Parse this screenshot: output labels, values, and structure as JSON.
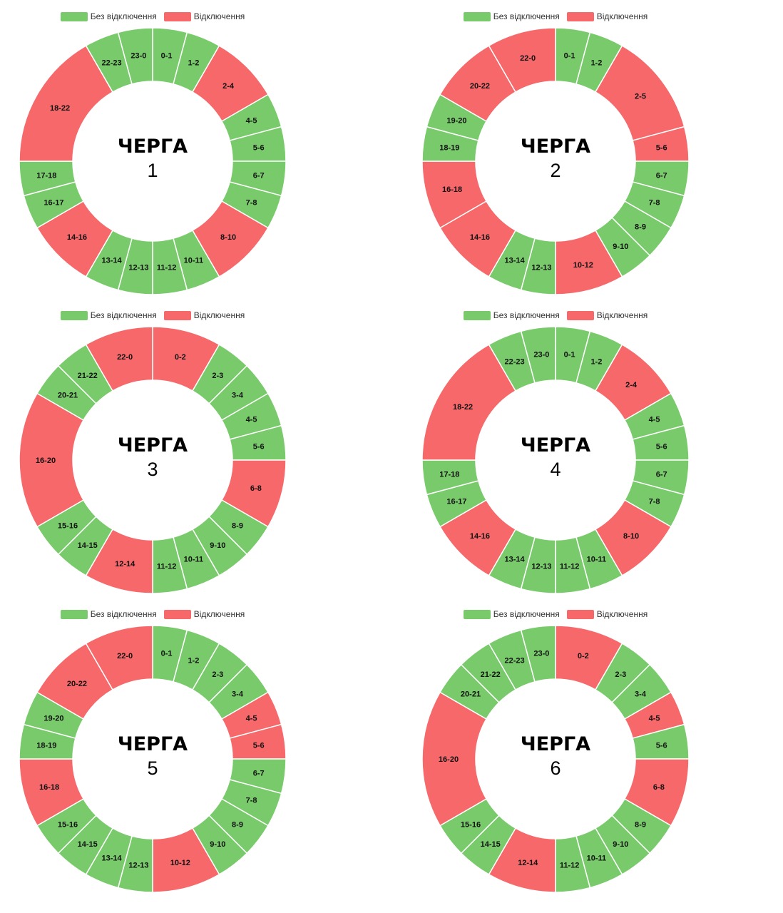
{
  "legend": {
    "no_outage": "Без відключення",
    "outage": "Відключення"
  },
  "colors": {
    "no_outage": "#78ca6b",
    "outage": "#f6686a",
    "divider": "#ffffff"
  },
  "title_word": "ЧЕРГА",
  "chart_data": [
    {
      "type": "pie",
      "variant": "donut",
      "title": "ЧЕРГА 1",
      "queue": "1",
      "segments": [
        {
          "label": "0-1",
          "start": 0,
          "end": 1,
          "outage": false
        },
        {
          "label": "1-2",
          "start": 1,
          "end": 2,
          "outage": false
        },
        {
          "label": "2-4",
          "start": 2,
          "end": 4,
          "outage": true
        },
        {
          "label": "4-5",
          "start": 4,
          "end": 5,
          "outage": false
        },
        {
          "label": "5-6",
          "start": 5,
          "end": 6,
          "outage": false
        },
        {
          "label": "6-7",
          "start": 6,
          "end": 7,
          "outage": false
        },
        {
          "label": "7-8",
          "start": 7,
          "end": 8,
          "outage": false
        },
        {
          "label": "8-10",
          "start": 8,
          "end": 10,
          "outage": true
        },
        {
          "label": "10-11",
          "start": 10,
          "end": 11,
          "outage": false
        },
        {
          "label": "11-12",
          "start": 11,
          "end": 12,
          "outage": false
        },
        {
          "label": "12-13",
          "start": 12,
          "end": 13,
          "outage": false
        },
        {
          "label": "13-14",
          "start": 13,
          "end": 14,
          "outage": false
        },
        {
          "label": "14-16",
          "start": 14,
          "end": 16,
          "outage": true
        },
        {
          "label": "16-17",
          "start": 16,
          "end": 17,
          "outage": false
        },
        {
          "label": "17-18",
          "start": 17,
          "end": 18,
          "outage": false
        },
        {
          "label": "18-22",
          "start": 18,
          "end": 22,
          "outage": true
        },
        {
          "label": "22-23",
          "start": 22,
          "end": 23,
          "outage": false
        },
        {
          "label": "23-0",
          "start": 23,
          "end": 24,
          "outage": false
        }
      ]
    },
    {
      "type": "pie",
      "variant": "donut",
      "title": "ЧЕРГА 2",
      "queue": "2",
      "segments": [
        {
          "label": "0-1",
          "start": 0,
          "end": 1,
          "outage": false
        },
        {
          "label": "1-2",
          "start": 1,
          "end": 2,
          "outage": false
        },
        {
          "label": "2-5",
          "start": 2,
          "end": 5,
          "outage": true
        },
        {
          "label": "5-6",
          "start": 5,
          "end": 6,
          "outage": true
        },
        {
          "label": "6-7",
          "start": 6,
          "end": 7,
          "outage": false
        },
        {
          "label": "7-8",
          "start": 7,
          "end": 8,
          "outage": false
        },
        {
          "label": "8-9",
          "start": 8,
          "end": 9,
          "outage": false
        },
        {
          "label": "9-10",
          "start": 9,
          "end": 10,
          "outage": false
        },
        {
          "label": "10-12",
          "start": 10,
          "end": 12,
          "outage": true
        },
        {
          "label": "12-13",
          "start": 12,
          "end": 13,
          "outage": false
        },
        {
          "label": "13-14",
          "start": 13,
          "end": 14,
          "outage": false
        },
        {
          "label": "14-16",
          "start": 14,
          "end": 16,
          "outage": true
        },
        {
          "label": "16-18",
          "start": 16,
          "end": 18,
          "outage": true
        },
        {
          "label": "18-19",
          "start": 18,
          "end": 19,
          "outage": false
        },
        {
          "label": "19-20",
          "start": 19,
          "end": 20,
          "outage": false
        },
        {
          "label": "20-22",
          "start": 20,
          "end": 22,
          "outage": true
        },
        {
          "label": "22-0",
          "start": 22,
          "end": 24,
          "outage": true
        }
      ]
    },
    {
      "type": "pie",
      "variant": "donut",
      "title": "ЧЕРГА 3",
      "queue": "3",
      "segments": [
        {
          "label": "0-2",
          "start": 0,
          "end": 2,
          "outage": true
        },
        {
          "label": "2-3",
          "start": 2,
          "end": 3,
          "outage": false
        },
        {
          "label": "3-4",
          "start": 3,
          "end": 4,
          "outage": false
        },
        {
          "label": "4-5",
          "start": 4,
          "end": 5,
          "outage": false
        },
        {
          "label": "5-6",
          "start": 5,
          "end": 6,
          "outage": false
        },
        {
          "label": "6-8",
          "start": 6,
          "end": 8,
          "outage": true
        },
        {
          "label": "8-9",
          "start": 8,
          "end": 9,
          "outage": false
        },
        {
          "label": "9-10",
          "start": 9,
          "end": 10,
          "outage": false
        },
        {
          "label": "10-11",
          "start": 10,
          "end": 11,
          "outage": false
        },
        {
          "label": "11-12",
          "start": 11,
          "end": 12,
          "outage": false
        },
        {
          "label": "12-14",
          "start": 12,
          "end": 14,
          "outage": true
        },
        {
          "label": "14-15",
          "start": 14,
          "end": 15,
          "outage": false
        },
        {
          "label": "15-16",
          "start": 15,
          "end": 16,
          "outage": false
        },
        {
          "label": "16-20",
          "start": 16,
          "end": 20,
          "outage": true
        },
        {
          "label": "20-21",
          "start": 20,
          "end": 21,
          "outage": false
        },
        {
          "label": "21-22",
          "start": 21,
          "end": 22,
          "outage": false
        },
        {
          "label": "22-0",
          "start": 22,
          "end": 24,
          "outage": true
        }
      ]
    },
    {
      "type": "pie",
      "variant": "donut",
      "title": "ЧЕРГА 4",
      "queue": "4",
      "segments": [
        {
          "label": "0-1",
          "start": 0,
          "end": 1,
          "outage": false
        },
        {
          "label": "1-2",
          "start": 1,
          "end": 2,
          "outage": false
        },
        {
          "label": "2-4",
          "start": 2,
          "end": 4,
          "outage": true
        },
        {
          "label": "4-5",
          "start": 4,
          "end": 5,
          "outage": false
        },
        {
          "label": "5-6",
          "start": 5,
          "end": 6,
          "outage": false
        },
        {
          "label": "6-7",
          "start": 6,
          "end": 7,
          "outage": false
        },
        {
          "label": "7-8",
          "start": 7,
          "end": 8,
          "outage": false
        },
        {
          "label": "8-10",
          "start": 8,
          "end": 10,
          "outage": true
        },
        {
          "label": "10-11",
          "start": 10,
          "end": 11,
          "outage": false
        },
        {
          "label": "11-12",
          "start": 11,
          "end": 12,
          "outage": false
        },
        {
          "label": "12-13",
          "start": 12,
          "end": 13,
          "outage": false
        },
        {
          "label": "13-14",
          "start": 13,
          "end": 14,
          "outage": false
        },
        {
          "label": "14-16",
          "start": 14,
          "end": 16,
          "outage": true
        },
        {
          "label": "16-17",
          "start": 16,
          "end": 17,
          "outage": false
        },
        {
          "label": "17-18",
          "start": 17,
          "end": 18,
          "outage": false
        },
        {
          "label": "18-22",
          "start": 18,
          "end": 22,
          "outage": true
        },
        {
          "label": "22-23",
          "start": 22,
          "end": 23,
          "outage": false
        },
        {
          "label": "23-0",
          "start": 23,
          "end": 24,
          "outage": false
        }
      ]
    },
    {
      "type": "pie",
      "variant": "donut",
      "title": "ЧЕРГА 5",
      "queue": "5",
      "segments": [
        {
          "label": "0-1",
          "start": 0,
          "end": 1,
          "outage": false
        },
        {
          "label": "1-2",
          "start": 1,
          "end": 2,
          "outage": false
        },
        {
          "label": "2-3",
          "start": 2,
          "end": 3,
          "outage": false
        },
        {
          "label": "3-4",
          "start": 3,
          "end": 4,
          "outage": false
        },
        {
          "label": "4-5",
          "start": 4,
          "end": 5,
          "outage": true
        },
        {
          "label": "5-6",
          "start": 5,
          "end": 6,
          "outage": true
        },
        {
          "label": "6-7",
          "start": 6,
          "end": 7,
          "outage": false
        },
        {
          "label": "7-8",
          "start": 7,
          "end": 8,
          "outage": false
        },
        {
          "label": "8-9",
          "start": 8,
          "end": 9,
          "outage": false
        },
        {
          "label": "9-10",
          "start": 9,
          "end": 10,
          "outage": false
        },
        {
          "label": "10-12",
          "start": 10,
          "end": 12,
          "outage": true
        },
        {
          "label": "12-13",
          "start": 12,
          "end": 13,
          "outage": false
        },
        {
          "label": "13-14",
          "start": 13,
          "end": 14,
          "outage": false
        },
        {
          "label": "14-15",
          "start": 14,
          "end": 15,
          "outage": false
        },
        {
          "label": "15-16",
          "start": 15,
          "end": 16,
          "outage": false
        },
        {
          "label": "16-18",
          "start": 16,
          "end": 18,
          "outage": true
        },
        {
          "label": "18-19",
          "start": 18,
          "end": 19,
          "outage": false
        },
        {
          "label": "19-20",
          "start": 19,
          "end": 20,
          "outage": false
        },
        {
          "label": "20-22",
          "start": 20,
          "end": 22,
          "outage": true
        },
        {
          "label": "22-0",
          "start": 22,
          "end": 24,
          "outage": true
        }
      ]
    },
    {
      "type": "pie",
      "variant": "donut",
      "title": "ЧЕРГА 6",
      "queue": "6",
      "segments": [
        {
          "label": "0-2",
          "start": 0,
          "end": 2,
          "outage": true
        },
        {
          "label": "2-3",
          "start": 2,
          "end": 3,
          "outage": false
        },
        {
          "label": "3-4",
          "start": 3,
          "end": 4,
          "outage": false
        },
        {
          "label": "4-5",
          "start": 4,
          "end": 5,
          "outage": true
        },
        {
          "label": "5-6",
          "start": 5,
          "end": 6,
          "outage": false
        },
        {
          "label": "6-8",
          "start": 6,
          "end": 8,
          "outage": true
        },
        {
          "label": "8-9",
          "start": 8,
          "end": 9,
          "outage": false
        },
        {
          "label": "9-10",
          "start": 9,
          "end": 10,
          "outage": false
        },
        {
          "label": "10-11",
          "start": 10,
          "end": 11,
          "outage": false
        },
        {
          "label": "11-12",
          "start": 11,
          "end": 12,
          "outage": false
        },
        {
          "label": "12-14",
          "start": 12,
          "end": 14,
          "outage": true
        },
        {
          "label": "14-15",
          "start": 14,
          "end": 15,
          "outage": false
        },
        {
          "label": "15-16",
          "start": 15,
          "end": 16,
          "outage": false
        },
        {
          "label": "16-20",
          "start": 16,
          "end": 20,
          "outage": true
        },
        {
          "label": "20-21",
          "start": 20,
          "end": 21,
          "outage": false
        },
        {
          "label": "21-22",
          "start": 21,
          "end": 22,
          "outage": false
        },
        {
          "label": "22-23",
          "start": 22,
          "end": 23,
          "outage": false
        },
        {
          "label": "23-0",
          "start": 23,
          "end": 24,
          "outage": false
        }
      ]
    }
  ]
}
